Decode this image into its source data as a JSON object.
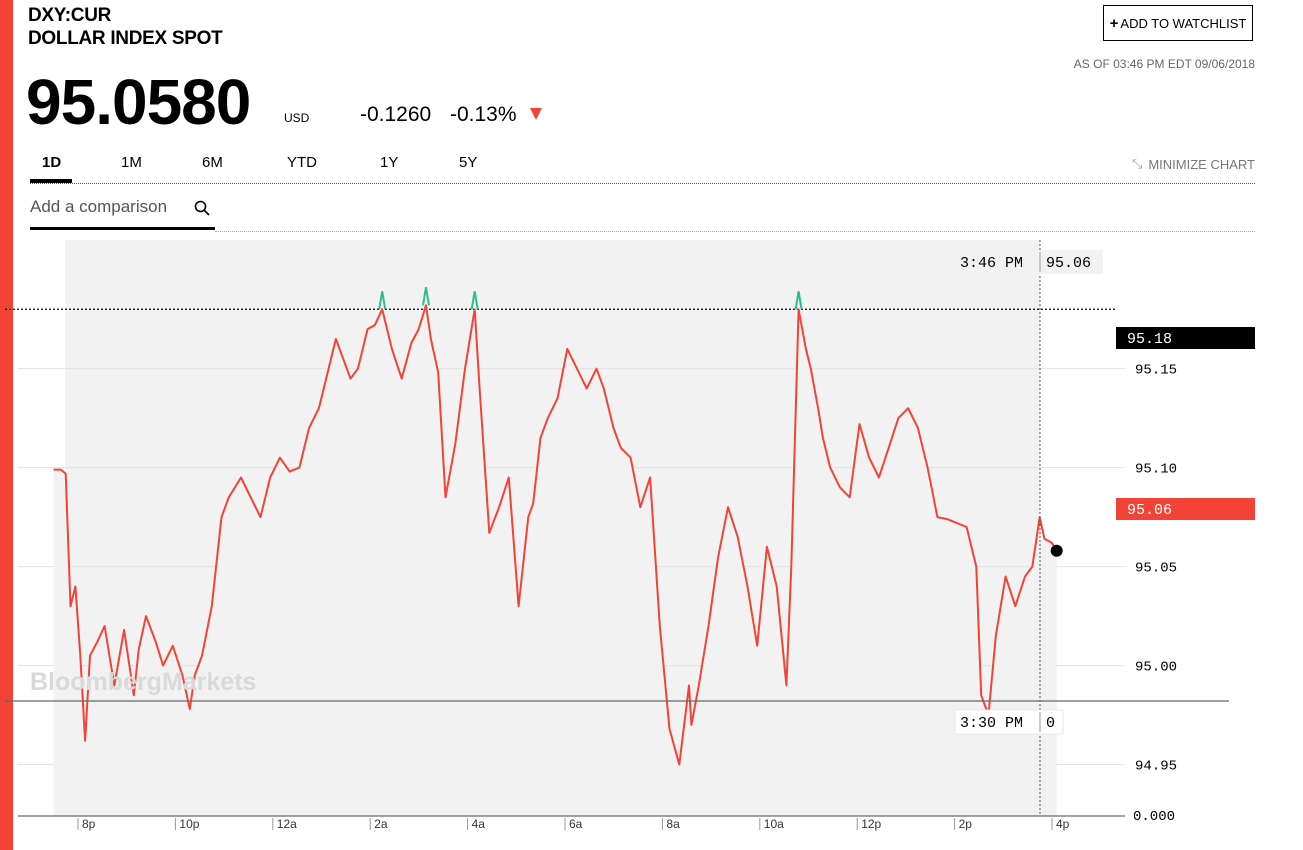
{
  "header": {
    "ticker": "DXY:CUR",
    "name": "DOLLAR INDEX SPOT",
    "price": "95.0580",
    "currency": "USD",
    "change": "-0.1260",
    "change_pct": "-0.13%",
    "as_of": "AS OF 03:46 PM EDT 09/06/2018",
    "watchlist_label": "ADD TO WATCHLIST"
  },
  "tabs": [
    "1D",
    "1M",
    "6M",
    "YTD",
    "1Y",
    "5Y"
  ],
  "active_tab": "1D",
  "minimize_label": "MINIMIZE CHART",
  "comparison": {
    "placeholder": "Add a comparison"
  },
  "brand_watermark": "BloombergMarkets",
  "colors": {
    "accent_red": "#f34336",
    "line": "#f34336",
    "high_marker": "#2bbf8f",
    "area": "#f2f2f2"
  },
  "icons": {
    "search": "search-icon",
    "minimize": "minimize-icon",
    "down_arrow": "down-arrow-icon"
  },
  "tooltip": {
    "time": "3:46 PM",
    "value": "95.06"
  },
  "volume_tooltip": {
    "time": "3:30 PM",
    "value": "0"
  },
  "high_label": "95.18",
  "last_label": "95.06",
  "chart_data": {
    "type": "line",
    "ylim": [
      94.924,
      95.215
    ],
    "y_ticks": [
      "95.15",
      "95.10",
      "95.05",
      "95.00",
      "94.95"
    ],
    "y_tick_values": [
      95.15,
      95.1,
      95.05,
      95.0,
      94.95
    ],
    "volume_tick": "0.000",
    "x_ticks": [
      "8p",
      "10p",
      "12a",
      "2a",
      "4a",
      "6a",
      "8a",
      "10a",
      "12p",
      "2p",
      "4p"
    ],
    "x_tick_hours": [
      20,
      22,
      24,
      26,
      28,
      30,
      32,
      34,
      36,
      38,
      40
    ],
    "high": 95.18,
    "last": 95.058,
    "series": [
      {
        "x": [
          19.25,
          19.4,
          19.5,
          19.6,
          19.7,
          19.8,
          19.9,
          20.0,
          20.15,
          20.3,
          20.5,
          20.7,
          20.9,
          21.0,
          21.15,
          21.35,
          21.5,
          21.7,
          21.9,
          22.05,
          22.15,
          22.3,
          22.5,
          22.7,
          22.85,
          23.1,
          23.3,
          23.5,
          23.7,
          23.9,
          24.1,
          24.3,
          24.5,
          24.7,
          24.9,
          25.05,
          25.2,
          25.35,
          25.5,
          25.7,
          25.85,
          26.0,
          26.2,
          26.4,
          26.6,
          26.75,
          26.9,
          27.0,
          27.15,
          27.3,
          27.5,
          27.7,
          27.9,
          28.0,
          28.2,
          28.4,
          28.6,
          28.8,
          29.0,
          29.1,
          29.25,
          29.4,
          29.6,
          29.8,
          30.0,
          30.2,
          30.4,
          30.55,
          30.75,
          30.9,
          31.1,
          31.3,
          31.5,
          31.7,
          31.9,
          32.1,
          32.3,
          32.35,
          32.5,
          32.7,
          32.9,
          33.1,
          33.3,
          33.5,
          33.7,
          33.9,
          34.1,
          34.3,
          34.4,
          34.55,
          34.7,
          34.8,
          34.95,
          35.05,
          35.2,
          35.4,
          35.6,
          35.8,
          36.0,
          36.2,
          36.4,
          36.6,
          36.8,
          37.0,
          37.2,
          37.4,
          37.6,
          37.8,
          38.0,
          38.2,
          38.3,
          38.45,
          38.6,
          38.8,
          39.0,
          39.2,
          39.35,
          39.5,
          39.6,
          39.75,
          39.85
        ],
        "values": [
          95.099,
          95.099,
          95.097,
          95.03,
          95.04,
          95.005,
          94.962,
          95.005,
          95.012,
          95.02,
          94.99,
          95.018,
          94.985,
          95.008,
          95.025,
          95.012,
          95.0,
          95.01,
          94.995,
          94.978,
          94.995,
          95.005,
          95.03,
          95.075,
          95.085,
          95.095,
          95.085,
          95.075,
          95.095,
          95.105,
          95.098,
          95.1,
          95.12,
          95.13,
          95.15,
          95.165,
          95.155,
          95.145,
          95.15,
          95.17,
          95.172,
          95.18,
          95.16,
          95.145,
          95.163,
          95.17,
          95.182,
          95.165,
          95.148,
          95.085,
          95.112,
          95.15,
          95.18,
          95.14,
          95.067,
          95.08,
          95.095,
          95.03,
          95.075,
          95.082,
          95.115,
          95.125,
          95.135,
          95.16,
          95.15,
          95.14,
          95.15,
          95.14,
          95.12,
          95.11,
          95.105,
          95.08,
          95.095,
          95.02,
          94.968,
          94.95,
          94.99,
          94.97,
          94.99,
          95.02,
          95.055,
          95.08,
          95.065,
          95.04,
          95.01,
          95.06,
          95.04,
          94.99,
          95.05,
          95.18,
          95.16,
          95.15,
          95.13,
          95.115,
          95.1,
          95.09,
          95.085,
          95.122,
          95.105,
          95.095,
          95.11,
          95.125,
          95.13,
          95.12,
          95.1,
          95.075,
          95.074,
          95.072,
          95.07,
          95.05,
          94.985,
          94.975,
          95.015,
          95.045,
          95.03,
          95.045,
          95.05,
          95.075,
          95.064,
          95.062,
          95.058
        ]
      }
    ]
  }
}
